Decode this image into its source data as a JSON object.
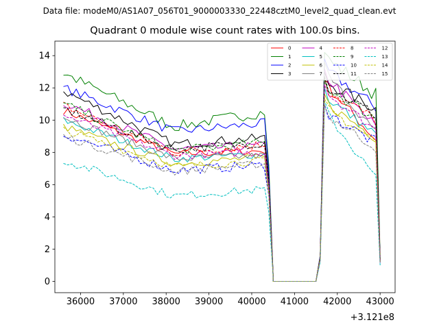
{
  "chart_data": {
    "type": "line",
    "suptitle": "Data file: modeM0/AS1A07_056T01_9000003330_22448cztM0_level2_quad_clean.evt",
    "title": "Quadrant 0 module wise count rates with 100.0s bins.",
    "xlabel": "",
    "ylabel": "",
    "x_offset_label": "+3.121e8",
    "xlim": [
      35400,
      43350
    ],
    "ylim": [
      -0.7,
      14.9
    ],
    "xticks": [
      36000,
      37000,
      38000,
      39000,
      40000,
      41000,
      42000,
      43000
    ],
    "xtick_labels": [
      "36000",
      "37000",
      "38000",
      "39000",
      "40000",
      "41000",
      "42000",
      "43000"
    ],
    "yticks": [
      0,
      2,
      4,
      6,
      8,
      10,
      12,
      14
    ],
    "ytick_labels": [
      "0",
      "2",
      "4",
      "6",
      "8",
      "10",
      "12",
      "14"
    ],
    "legend_position": "top-right",
    "segments": [
      {
        "x_start": 35600,
        "x_end": 40300,
        "n": 48
      },
      {
        "x_start": 40400,
        "x_end": 40500,
        "n": 2
      },
      {
        "x_start": 40500,
        "x_end": 41500,
        "n": 11
      },
      {
        "x_start": 41500,
        "x_end": 41600,
        "n": 2
      },
      {
        "x_start": 41700,
        "x_end": 42900,
        "n": 13
      },
      {
        "x_start": 43000,
        "x_end": 43000,
        "n": 1
      }
    ],
    "series": [
      {
        "name": "0",
        "color": "#ff0000",
        "dash": "solid",
        "start": 10.6,
        "mid": 7.9,
        "end": 8.1,
        "drop": [
          6.0,
          1.2
        ],
        "rise": [
          1.5,
          12.5
        ],
        "after_start": 12.3,
        "after_end": 8.8,
        "final": 1.3,
        "noise": 0.25
      },
      {
        "name": "1",
        "color": "#008000",
        "dash": "solid",
        "start": 12.9,
        "mid": 9.6,
        "end": 10.5,
        "drop": [
          7.2,
          1.4
        ],
        "rise": [
          1.6,
          14.2
        ],
        "after_start": 13.9,
        "after_end": 11.6,
        "final": 1.6,
        "noise": 0.35
      },
      {
        "name": "2",
        "color": "#0000ff",
        "dash": "solid",
        "start": 12.0,
        "mid": 9.3,
        "end": 9.8,
        "drop": [
          6.8,
          1.3
        ],
        "rise": [
          1.6,
          13.8
        ],
        "after_start": 13.2,
        "after_end": 10.8,
        "final": 1.4,
        "noise": 0.3
      },
      {
        "name": "3",
        "color": "#000000",
        "dash": "solid",
        "start": 11.8,
        "mid": 8.5,
        "end": 8.9,
        "drop": [
          6.4,
          1.2
        ],
        "rise": [
          1.5,
          13.0
        ],
        "after_start": 12.4,
        "after_end": 10.7,
        "final": 1.4,
        "noise": 0.3
      },
      {
        "name": "4",
        "color": "#bf00bf",
        "dash": "solid",
        "start": 11.1,
        "mid": 8.2,
        "end": 8.4,
        "drop": [
          6.1,
          1.2
        ],
        "rise": [
          1.5,
          13.2
        ],
        "after_start": 12.8,
        "after_end": 9.6,
        "final": 1.3,
        "noise": 0.3
      },
      {
        "name": "5",
        "color": "#00bfbf",
        "dash": "solid",
        "start": 10.0,
        "mid": 7.6,
        "end": 7.9,
        "drop": [
          5.8,
          1.1
        ],
        "rise": [
          1.4,
          12.0
        ],
        "after_start": 11.5,
        "after_end": 9.1,
        "final": 1.2,
        "noise": 0.25
      },
      {
        "name": "6",
        "color": "#bfbf00",
        "dash": "solid",
        "start": 9.6,
        "mid": 7.3,
        "end": 7.7,
        "drop": [
          5.6,
          1.1
        ],
        "rise": [
          1.4,
          11.6
        ],
        "after_start": 11.1,
        "after_end": 8.9,
        "final": 1.2,
        "noise": 0.25
      },
      {
        "name": "7",
        "color": "#808080",
        "dash": "solid",
        "start": 10.2,
        "mid": 7.6,
        "end": 7.8,
        "drop": [
          5.7,
          1.1
        ],
        "rise": [
          1.4,
          13.6
        ],
        "after_start": 13.0,
        "after_end": 9.2,
        "final": 1.2,
        "noise": 0.25
      },
      {
        "name": "8",
        "color": "#ff0000",
        "dash": "dashed",
        "start": 10.9,
        "mid": 8.0,
        "end": 8.5,
        "drop": [
          6.2,
          1.2
        ],
        "rise": [
          1.5,
          12.6
        ],
        "after_start": 12.0,
        "after_end": 10.0,
        "final": 1.3,
        "noise": 0.3
      },
      {
        "name": "9",
        "color": "#008000",
        "dash": "dashed",
        "start": 11.0,
        "mid": 8.1,
        "end": 8.6,
        "drop": [
          6.2,
          1.2
        ],
        "rise": [
          1.5,
          12.5
        ],
        "after_start": 12.1,
        "after_end": 10.1,
        "final": 1.3,
        "noise": 0.3
      },
      {
        "name": "10",
        "color": "#0000ff",
        "dash": "dashed",
        "start": 9.1,
        "mid": 6.9,
        "end": 7.2,
        "drop": [
          5.3,
          1.0
        ],
        "rise": [
          1.3,
          11.0
        ],
        "after_start": 10.5,
        "after_end": 8.6,
        "final": 1.1,
        "noise": 0.3
      },
      {
        "name": "11",
        "color": "#000000",
        "dash": "dashed",
        "start": 10.7,
        "mid": 8.2,
        "end": 8.6,
        "drop": [
          6.2,
          1.2
        ],
        "rise": [
          1.5,
          12.7
        ],
        "after_start": 12.2,
        "after_end": 10.3,
        "final": 1.3,
        "noise": 0.3
      },
      {
        "name": "12",
        "color": "#bf00bf",
        "dash": "dashed",
        "start": 10.3,
        "mid": 7.8,
        "end": 8.0,
        "drop": [
          5.9,
          1.1
        ],
        "rise": [
          1.4,
          12.2
        ],
        "after_start": 11.8,
        "after_end": 9.4,
        "final": 1.2,
        "noise": 0.25
      },
      {
        "name": "13",
        "color": "#00bfbf",
        "dash": "dashed",
        "start": 7.5,
        "mid": 5.3,
        "end": 5.7,
        "drop": [
          4.3,
          0.9
        ],
        "rise": [
          1.2,
          11.2
        ],
        "after_start": 10.6,
        "after_end": 6.4,
        "final": 1.0,
        "noise": 0.25
      },
      {
        "name": "14",
        "color": "#bfbf00",
        "dash": "dashed",
        "start": 9.4,
        "mid": 7.1,
        "end": 7.5,
        "drop": [
          5.5,
          1.1
        ],
        "rise": [
          1.4,
          11.3
        ],
        "after_start": 10.8,
        "after_end": 8.7,
        "final": 1.2,
        "noise": 0.25
      },
      {
        "name": "15",
        "color": "#808080",
        "dash": "dashed",
        "start": 9.0,
        "mid": 6.8,
        "end": 7.3,
        "drop": [
          5.3,
          1.0
        ],
        "rise": [
          1.3,
          10.9
        ],
        "after_start": 10.4,
        "after_end": 8.3,
        "final": 1.1,
        "noise": 0.25
      }
    ]
  }
}
